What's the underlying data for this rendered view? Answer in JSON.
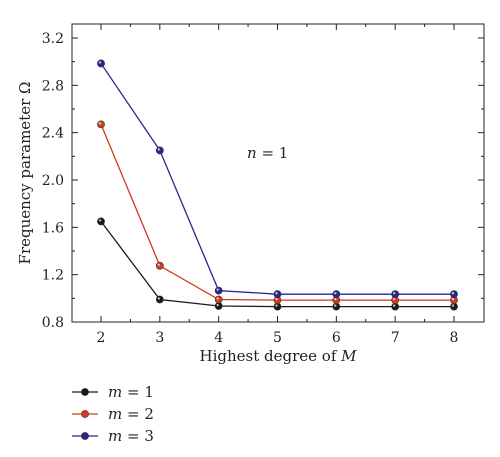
{
  "chart_data": {
    "type": "line",
    "x": [
      2,
      3,
      4,
      5,
      6,
      7,
      8
    ],
    "xlabel_prefix": "Highest degree of ",
    "xlabel_var": "M",
    "ylabel": "Frequency parameter Ω",
    "xlim": [
      2,
      8
    ],
    "ylim": [
      0.8,
      3.2
    ],
    "yticks": [
      "0.8",
      "1.2",
      "1.6",
      "2.0",
      "2.4",
      "2.8",
      "3.2"
    ],
    "xticks": [
      "2",
      "3",
      "4",
      "5",
      "6",
      "7",
      "8"
    ],
    "annotation": {
      "var": "n",
      "rest": " = 1"
    },
    "grid": false,
    "legend_position": "below-left",
    "series": [
      {
        "var": "m",
        "rest": " = 1",
        "color": "#1a1a1a",
        "values": [
          1.65,
          0.99,
          0.935,
          0.93,
          0.93,
          0.93,
          0.93
        ]
      },
      {
        "var": "m",
        "rest": " = 2",
        "color": "#d03a1e",
        "values": [
          2.47,
          1.275,
          0.99,
          0.985,
          0.985,
          0.985,
          0.985
        ]
      },
      {
        "var": "m",
        "rest": " = 3",
        "color": "#2a2490",
        "values": [
          2.985,
          2.25,
          1.065,
          1.035,
          1.035,
          1.035,
          1.035
        ]
      }
    ]
  }
}
